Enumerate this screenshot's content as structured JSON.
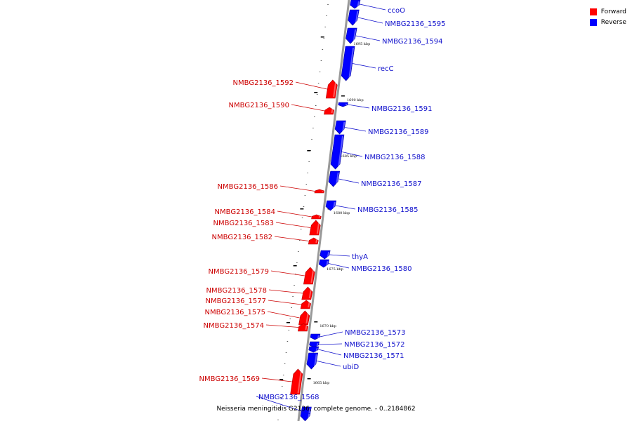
{
  "colors": {
    "forward": "#ff0000",
    "reverse": "#0000ff",
    "forward_label": "#cc0000",
    "reverse_label": "#1010cc",
    "axis": "#999999"
  },
  "legend": [
    {
      "label": "Forward",
      "color": "#ff0000"
    },
    {
      "label": "Reverse",
      "color": "#0000ff"
    }
  ],
  "caption": "Neisseria meningitidis G2136, complete genome. - 0..2184862",
  "tick_labels": [
    "1695 kbp",
    "1690 kbp",
    "1685 kbp",
    "1680 kbp",
    "1675 kbp",
    "1670 kbp",
    "1665 kbp"
  ],
  "genes": [
    {
      "name": "ccoO",
      "strand": "reverse"
    },
    {
      "name": "NMBG2136_1595",
      "strand": "reverse"
    },
    {
      "name": "NMBG2136_1594",
      "strand": "reverse"
    },
    {
      "name": "recC",
      "strand": "reverse"
    },
    {
      "name": "NMBG2136_1592",
      "strand": "forward"
    },
    {
      "name": "NMBG2136_1591",
      "strand": "reverse"
    },
    {
      "name": "NMBG2136_1590",
      "strand": "forward"
    },
    {
      "name": "NMBG2136_1589",
      "strand": "reverse"
    },
    {
      "name": "NMBG2136_1588",
      "strand": "reverse"
    },
    {
      "name": "NMBG2136_1587",
      "strand": "reverse"
    },
    {
      "name": "NMBG2136_1586",
      "strand": "forward"
    },
    {
      "name": "NMBG2136_1585",
      "strand": "reverse"
    },
    {
      "name": "NMBG2136_1584",
      "strand": "forward"
    },
    {
      "name": "NMBG2136_1583",
      "strand": "forward"
    },
    {
      "name": "NMBG2136_1582",
      "strand": "forward"
    },
    {
      "name": "thyA",
      "strand": "reverse"
    },
    {
      "name": "NMBG2136_1580",
      "strand": "reverse"
    },
    {
      "name": "NMBG2136_1579",
      "strand": "forward"
    },
    {
      "name": "NMBG2136_1578",
      "strand": "forward"
    },
    {
      "name": "NMBG2136_1577",
      "strand": "forward"
    },
    {
      "name": "NMBG2136_1575",
      "strand": "forward"
    },
    {
      "name": "NMBG2136_1574",
      "strand": "forward"
    },
    {
      "name": "NMBG2136_1573",
      "strand": "reverse"
    },
    {
      "name": "NMBG2136_1572",
      "strand": "reverse"
    },
    {
      "name": "NMBG2136_1571",
      "strand": "reverse"
    },
    {
      "name": "ubiD",
      "strand": "reverse"
    },
    {
      "name": "NMBG2136_1569",
      "strand": "forward"
    },
    {
      "name": "NMBG2136_1568",
      "strand": "reverse"
    }
  ]
}
